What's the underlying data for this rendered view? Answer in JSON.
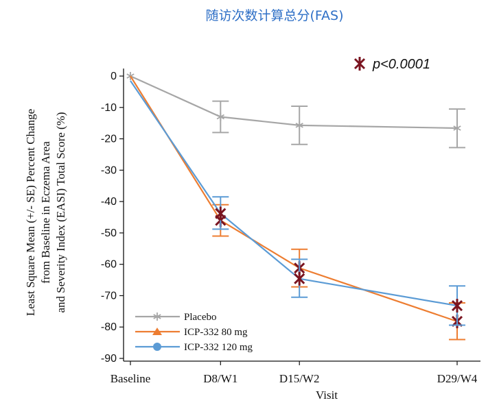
{
  "title": "随访次数计算总分(FAS)",
  "chart_data": {
    "type": "line",
    "ylabel_lines": [
      "Least Square Mean (+/- SE) Percent Change",
      "from Baseline in Eczema Area",
      "and Severity Index (EASI) Total Score (%)"
    ],
    "xlabel": "Visit",
    "categories": [
      "Baseline",
      "D8/W1",
      "D15/W2",
      "D29/W4"
    ],
    "x_positions": [
      0,
      8,
      15,
      29
    ],
    "ylim": [
      -90,
      0
    ],
    "yticks": [
      0,
      -10,
      -20,
      -30,
      -40,
      -50,
      -60,
      -70,
      -80,
      -90
    ],
    "significance_label": "p<0.0001",
    "significance_color": "#7a1420",
    "series": [
      {
        "name": "Placebo",
        "color": "#a6a6a6",
        "marker": "star",
        "values": [
          0,
          -13,
          -15.7,
          -16.6
        ],
        "se_low": [
          null,
          -18,
          -21.8,
          -22.8
        ],
        "se_high": [
          null,
          -8,
          -9.6,
          -10.5
        ],
        "significant": [
          false,
          false,
          false,
          false
        ]
      },
      {
        "name": "ICP-332 80 mg",
        "color": "#ed7d31",
        "marker": "triangle",
        "values": [
          0,
          -46,
          -61.2,
          -78.2
        ],
        "se_low": [
          null,
          -51,
          -67.2,
          -84
        ],
        "se_high": [
          null,
          -41,
          -55.2,
          -72.3
        ],
        "significant": [
          false,
          true,
          true,
          true
        ]
      },
      {
        "name": "ICP-332 120 mg",
        "color": "#5b9bd5",
        "marker": "circle",
        "values": [
          -1.5,
          -43.8,
          -64.6,
          -73.2
        ],
        "se_low": [
          null,
          -48.8,
          -70.5,
          -79.4
        ],
        "se_high": [
          null,
          -38.5,
          -58.4,
          -66.9
        ],
        "significant": [
          false,
          true,
          true,
          true
        ]
      }
    ]
  }
}
